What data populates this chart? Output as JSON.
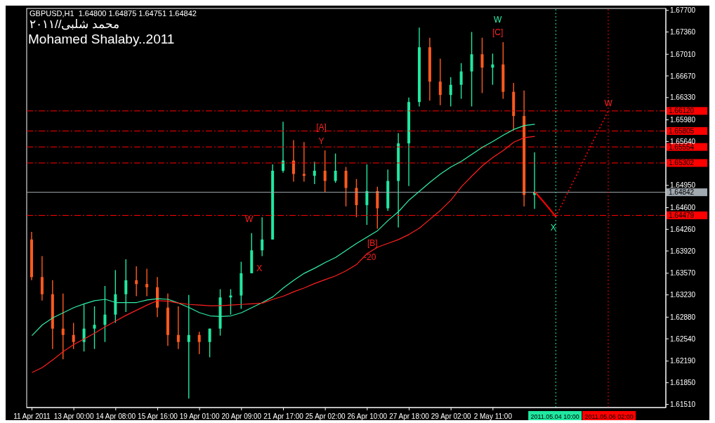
{
  "chart_data": {
    "type": "candlestick",
    "title": "GBPUSD,H1  1.64800 1.64875 1.64751 1.64842",
    "subtitle": "محمد شلبى//٢٠١١",
    "annotations": [
      "Mohamed Shalaby..2011",
      "W",
      "X",
      "[A]",
      "Y",
      "[B]",
      "-20",
      "W",
      "[C]",
      "X",
      "W"
    ],
    "categories": [
      "11 Apr 2011",
      null,
      null,
      null,
      "13 Apr 00:00",
      null,
      null,
      null,
      "14 Apr 08:00",
      null,
      null,
      null,
      "15 Apr 16:00",
      null,
      null,
      null,
      "19 Apr 01:00",
      null,
      null,
      null,
      "20 Apr 09:00",
      null,
      null,
      null,
      "21 Apr 17:00",
      null,
      null,
      null,
      "25 Apr 02:00",
      null,
      null,
      null,
      "26 Apr 10:00",
      null,
      null,
      null,
      "27 Apr 18:00",
      null,
      null,
      null,
      "29 Apr 02:00",
      null,
      null,
      null,
      "2 May 11:00",
      null,
      null,
      null,
      null,
      null,
      "2011.05.04 10:00",
      null,
      null,
      null,
      null,
      "2011.05.06 02:00",
      null,
      null,
      null,
      null,
      null
    ],
    "ohlc": [
      [
        1.641,
        1.6422,
        1.6346,
        1.6351
      ],
      [
        1.6351,
        1.6384,
        1.6314,
        1.6324
      ],
      [
        1.6324,
        1.6346,
        1.6238,
        1.627
      ],
      [
        1.627,
        1.6325,
        1.6222,
        1.626
      ],
      [
        1.626,
        1.6279,
        1.6238,
        1.6249
      ],
      [
        1.6249,
        1.6308,
        1.6234,
        1.627
      ],
      [
        1.627,
        1.6305,
        1.6238,
        1.6276
      ],
      [
        1.6276,
        1.6337,
        1.6249,
        1.6292
      ],
      [
        1.6292,
        1.6362,
        1.6279,
        1.6324
      ],
      [
        1.6324,
        1.6379,
        1.6296,
        1.6346
      ],
      [
        1.6346,
        1.6368,
        1.6321,
        1.634
      ],
      [
        1.634,
        1.6364,
        1.6321,
        1.6335
      ],
      [
        1.6335,
        1.6351,
        1.6288,
        1.6303
      ],
      [
        1.6303,
        1.6325,
        1.6243,
        1.626
      ],
      [
        1.626,
        1.6305,
        1.6238,
        1.6249
      ],
      [
        1.6249,
        1.6323,
        1.616,
        1.626
      ],
      [
        1.626,
        1.6265,
        1.623,
        1.6249
      ],
      [
        1.6249,
        1.627,
        1.6225,
        1.627
      ],
      [
        1.627,
        1.6332,
        1.6259,
        1.6319
      ],
      [
        1.6319,
        1.6332,
        1.6292,
        1.6322
      ],
      [
        1.6322,
        1.6375,
        1.6301,
        1.6357
      ],
      [
        1.6357,
        1.642,
        1.6357,
        1.6393
      ],
      [
        1.6393,
        1.6445,
        1.6384,
        1.641
      ],
      [
        1.641,
        1.6528,
        1.641,
        1.6518
      ],
      [
        1.6518,
        1.6595,
        1.6515,
        1.6534
      ],
      [
        1.6534,
        1.6566,
        1.6501,
        1.6513
      ],
      [
        1.6513,
        1.6563,
        1.6501,
        1.651
      ],
      [
        1.651,
        1.6532,
        1.6497,
        1.6518
      ],
      [
        1.6518,
        1.655,
        1.6485,
        1.6502
      ],
      [
        1.6502,
        1.6545,
        1.6499,
        1.6518
      ],
      [
        1.6518,
        1.6524,
        1.6462,
        1.6491
      ],
      [
        1.6491,
        1.6505,
        1.6445,
        1.6464
      ],
      [
        1.6464,
        1.6528,
        1.6433,
        1.6486
      ],
      [
        1.6486,
        1.6493,
        1.6427,
        1.6459
      ],
      [
        1.6459,
        1.652,
        1.6455,
        1.6502
      ],
      [
        1.6502,
        1.6577,
        1.6429,
        1.6561
      ],
      [
        1.6561,
        1.6633,
        1.6494,
        1.6626
      ],
      [
        1.6626,
        1.6743,
        1.6619,
        1.6712
      ],
      [
        1.6712,
        1.6727,
        1.6628,
        1.6658
      ],
      [
        1.6658,
        1.6694,
        1.6621,
        1.6637
      ],
      [
        1.6637,
        1.6665,
        1.6619,
        1.6653
      ],
      [
        1.6653,
        1.6687,
        1.6631,
        1.6674
      ],
      [
        1.6674,
        1.6736,
        1.6619,
        1.6701
      ],
      [
        1.6701,
        1.6727,
        1.664,
        1.668
      ],
      [
        1.668,
        1.6702,
        1.6653,
        1.6685
      ],
      [
        1.6685,
        1.672,
        1.6631,
        1.6642
      ],
      [
        1.6642,
        1.6656,
        1.6582,
        1.6604
      ],
      [
        1.6604,
        1.6644,
        1.6462,
        1.648
      ],
      [
        1.648,
        1.6547,
        1.6458,
        1.6484
      ],
      null,
      null,
      null,
      null,
      null,
      null,
      null,
      null,
      null,
      null,
      null,
      null
    ],
    "colors": [
      "#ff5a1e",
      "#ff5a1e",
      "#ff5a1e",
      "#ff5a1e",
      "#ff5a1e",
      "#20e8a0",
      "#20e8a0",
      "#20e8a0",
      "#20e8a0",
      "#20e8a0",
      "#ff5a1e",
      "#ff5a1e",
      "#ff5a1e",
      "#ff5a1e",
      "#ff5a1e",
      "#20e8a0",
      "#ff5a1e",
      "#20e8a0",
      "#20e8a0",
      "#20e8a0",
      "#20e8a0",
      "#20e8a0",
      "#20e8a0",
      "#20e8a0",
      "#20e8a0",
      "#ff5a1e",
      "#ff5a1e",
      "#20e8a0",
      "#ff5a1e",
      "#20e8a0",
      "#ff5a1e",
      "#ff5a1e",
      "#20e8a0",
      "#ff5a1e",
      "#20e8a0",
      "#20e8a0",
      "#20e8a0",
      "#20e8a0",
      "#ff5a1e",
      "#ff5a1e",
      "#20e8a0",
      "#20e8a0",
      "#20e8a0",
      "#ff5a1e",
      "#20e8a0",
      "#ff5a1e",
      "#ff5a1e",
      "#ff5a1e",
      "#20e8a0",
      null,
      null,
      null,
      null,
      null,
      null,
      null,
      null,
      null,
      null,
      null,
      null
    ],
    "series": [
      {
        "type": "line",
        "color": "#30f0a8",
        "values": [
          1.6259,
          1.6276,
          1.6287,
          1.6295,
          1.6303,
          1.6309,
          1.6314,
          1.6316,
          1.6311,
          1.6311,
          1.6311,
          1.6315,
          1.6317,
          1.6316,
          1.631,
          1.6303,
          1.6295,
          1.629,
          1.6289,
          1.629,
          1.6295,
          1.6303,
          1.6311,
          1.632,
          1.6334,
          1.6346,
          1.6357,
          1.6365,
          1.6374,
          1.6382,
          1.6393,
          1.6404,
          1.6414,
          1.6424,
          1.644,
          1.6454,
          1.6472,
          1.6486,
          1.65,
          1.6513,
          1.6524,
          1.6533,
          1.6544,
          1.6555,
          1.6564,
          1.6574,
          1.6583,
          1.6589,
          1.6591,
          null,
          null,
          null,
          null,
          null,
          null,
          null,
          null,
          null,
          null,
          null,
          null
        ]
      },
      {
        "type": "line",
        "color": "#ff2020",
        "values": [
          1.6201,
          1.6209,
          1.6221,
          1.6234,
          1.6245,
          1.6254,
          1.6263,
          1.6273,
          1.6282,
          1.6291,
          1.6299,
          1.6307,
          1.6314,
          1.6313,
          1.631,
          1.6308,
          1.6307,
          1.6306,
          1.6306,
          1.6307,
          1.6308,
          1.6309,
          1.631,
          1.6316,
          1.6321,
          1.6328,
          1.6334,
          1.6341,
          1.6347,
          1.6353,
          1.6361,
          1.6371,
          1.6388,
          1.6398,
          1.6404,
          1.641,
          1.6418,
          1.6428,
          1.6442,
          1.6456,
          1.6472,
          1.6493,
          1.651,
          1.6526,
          1.6539,
          1.655,
          1.6563,
          1.657,
          1.6572,
          null,
          null,
          null,
          null,
          null,
          null,
          null,
          null,
          null,
          null,
          null,
          null
        ]
      },
      {
        "type": "line",
        "color": "#ff0000",
        "line_style": "solid",
        "values": [
          null,
          null,
          null,
          null,
          null,
          null,
          null,
          null,
          null,
          null,
          null,
          null,
          null,
          null,
          null,
          null,
          null,
          null,
          null,
          null,
          null,
          null,
          null,
          null,
          null,
          null,
          null,
          null,
          null,
          null,
          null,
          null,
          null,
          null,
          null,
          null,
          null,
          null,
          null,
          null,
          null,
          null,
          null,
          null,
          null,
          null,
          null,
          null,
          1.6485,
          1.6466,
          1.6446,
          null,
          null,
          null,
          null,
          null,
          null,
          null,
          null,
          null,
          null
        ]
      },
      {
        "type": "line",
        "color": "#ff0000",
        "line_style": "dotted",
        "values": [
          null,
          null,
          null,
          null,
          null,
          null,
          null,
          null,
          null,
          null,
          null,
          null,
          null,
          null,
          null,
          null,
          null,
          null,
          null,
          null,
          null,
          null,
          null,
          null,
          null,
          null,
          null,
          null,
          null,
          null,
          null,
          null,
          null,
          null,
          null,
          null,
          null,
          null,
          null,
          null,
          null,
          null,
          null,
          null,
          null,
          null,
          null,
          null,
          null,
          null,
          1.6446,
          1.6479,
          1.6512,
          1.6546,
          1.6579,
          1.6612,
          null,
          null,
          null,
          null,
          null
        ]
      }
    ],
    "ref_lines": [
      {
        "axis": "y",
        "value": 1.6612,
        "label": "1.66120",
        "color": "#ff0000",
        "line_style": "dashed"
      },
      {
        "axis": "y",
        "value": 1.65805,
        "label": "1.65805",
        "color": "#ff0000",
        "line_style": "dashed"
      },
      {
        "axis": "y",
        "value": 1.65554,
        "label": "1.65554",
        "color": "#ff0000",
        "line_style": "dashed"
      },
      {
        "axis": "y",
        "value": 1.65302,
        "label": "1.65302",
        "color": "#ff0000",
        "line_style": "dashed"
      },
      {
        "axis": "y",
        "value": 1.64479,
        "label": "1.64479",
        "color": "#ff0000",
        "line_style": "dashed"
      },
      {
        "axis": "y",
        "value": 1.64842,
        "label": "1.64842",
        "color": "#a0a8b0",
        "line_style": "solid"
      },
      {
        "axis": "x",
        "value": "2011.05.04 10:00",
        "color": "#20e8a0",
        "line_style": "dotted"
      },
      {
        "axis": "x",
        "value": "2011.05.06 02:00",
        "color": "#ff0000",
        "line_style": "dotted"
      }
    ],
    "ylim": [
      1.6146,
      1.6773
    ],
    "yticks": [
      {
        "value": 1.677,
        "label": "1.67700"
      },
      {
        "value": 1.6736,
        "label": "1.67360"
      },
      {
        "value": 1.6701,
        "label": "1.67010"
      },
      {
        "value": 1.6667,
        "label": "1.66670"
      },
      {
        "value": 1.6633,
        "label": "1.66330"
      },
      {
        "value": 1.6598,
        "label": "1.65980"
      },
      {
        "value": 1.6564,
        "label": "1.65640"
      },
      {
        "value": 1.6495,
        "label": "1.64950"
      },
      {
        "value": 1.646,
        "label": "1.64600"
      },
      {
        "value": 1.6426,
        "label": "1.64260"
      },
      {
        "value": 1.6392,
        "label": "1.63920"
      },
      {
        "value": 1.6357,
        "label": "1.63570"
      },
      {
        "value": 1.6323,
        "label": "1.63230"
      },
      {
        "value": 1.6288,
        "label": "1.62880"
      },
      {
        "value": 1.6254,
        "label": "1.62540"
      },
      {
        "value": 1.6219,
        "label": "1.62190"
      },
      {
        "value": 1.6185,
        "label": "1.61850"
      },
      {
        "value": 1.6151,
        "label": "1.61510"
      }
    ]
  }
}
